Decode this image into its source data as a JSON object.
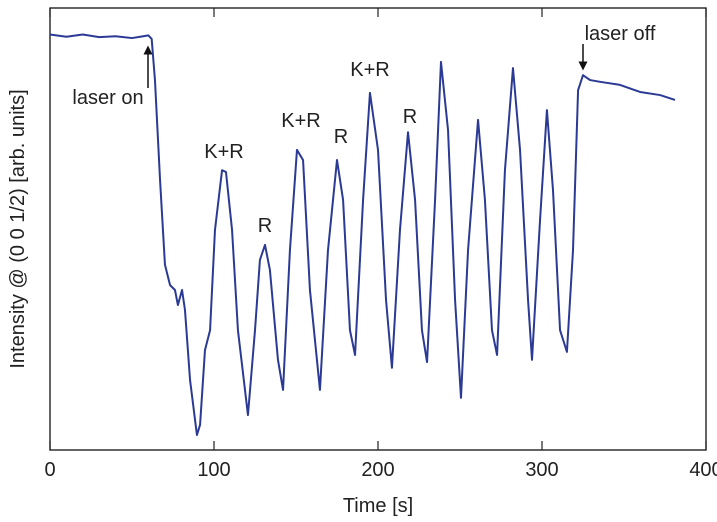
{
  "chart_data": {
    "type": "line",
    "xlabel": "Time [s]",
    "ylabel": "Intensity @ (0 0 1/2) [arb. units]",
    "xlim": [
      0,
      400
    ],
    "xticks": [
      0,
      100,
      200,
      300,
      400
    ],
    "ylim": [
      0,
      100
    ],
    "annotations": [
      "laser on",
      "K+R",
      "R",
      "K+R",
      "R",
      "K+R",
      "R",
      "laser off"
    ],
    "series": [
      {
        "color": "#2b3a95",
        "x": [
          0,
          10,
          20,
          30,
          40,
          50,
          55,
          60,
          62,
          64.0,
          67.1,
          70.1,
          73.2,
          76.2,
          78.0,
          80.5,
          82.3,
          85.4,
          89.6,
          91.5,
          94.5,
          97.6,
          100.6,
          104.9,
          107.3,
          111.0,
          114.6,
          120.7,
          125.0,
          128.0,
          131.1,
          134.1,
          139.0,
          142.1,
          146.3,
          150.6,
          154.3,
          158.5,
          164.6,
          169.5,
          175.0,
          178.7,
          182.9,
          186.0,
          190.9,
          195.1,
          200.0,
          204.9,
          208.5,
          213.4,
          218.3,
          222.6,
          226.8,
          229.9,
          234.8,
          238.4,
          242.7,
          247.0,
          250.6,
          254.9,
          261.0,
          265.2,
          269.5,
          272.6,
          277.4,
          282.3,
          286.6,
          291.5,
          293.9,
          298.8,
          303.0,
          306.7,
          311.0,
          315.2,
          318.9,
          322.0,
          325.0,
          329.3,
          335.4,
          347.6,
          359.8,
          372.0,
          381.1
        ],
        "values": [
          94,
          93.5,
          94,
          93.4,
          93.6,
          93.2,
          93.5,
          93.8,
          93,
          83.7,
          61.1,
          41.9,
          37.3,
          36.2,
          32.8,
          36.2,
          31.7,
          15.8,
          3.4,
          5.7,
          22.6,
          27.1,
          49.8,
          63.3,
          62.9,
          49.8,
          27.1,
          7.9,
          27.1,
          43.0,
          46.4,
          40.7,
          20.4,
          13.6,
          45.2,
          67.9,
          65.6,
          36.2,
          13.6,
          45.2,
          65.6,
          56.6,
          27.1,
          21.5,
          56.6,
          80.8,
          67.9,
          33.9,
          18.6,
          49.8,
          71.9,
          56.6,
          27.1,
          19.9,
          56.6,
          87.8,
          72.4,
          33.9,
          11.8,
          45.2,
          74.7,
          56.6,
          27.1,
          21.5,
          63.3,
          86.4,
          67.9,
          33.9,
          20.4,
          52.0,
          76.9,
          58.8,
          27.1,
          22.2,
          45.2,
          81.4,
          84.8,
          83.7,
          83.3,
          82.6,
          81.0,
          80.3,
          79.2
        ]
      }
    ]
  }
}
